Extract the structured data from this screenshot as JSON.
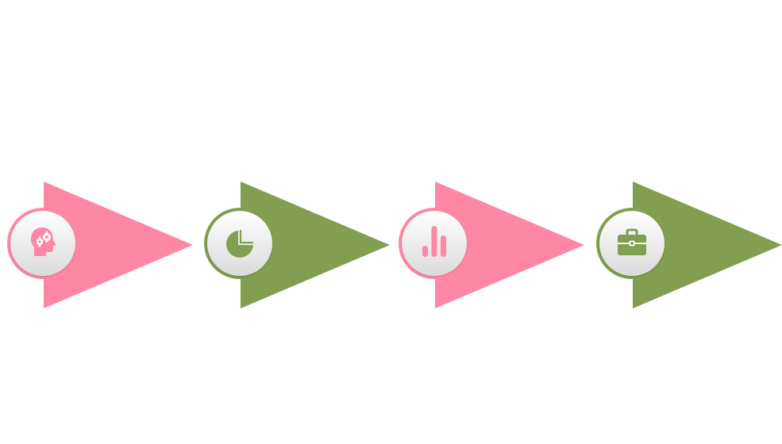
{
  "colors": {
    "pink": "#FF87A6",
    "green": "#829E50",
    "badge_top": "#FFFFFF",
    "badge_bottom": "#DADADA"
  },
  "steps": [
    {
      "color": "#FF87A6",
      "icon": "head-gears-icon"
    },
    {
      "color": "#829E50",
      "icon": "pie-chart-icon"
    },
    {
      "color": "#FF87A6",
      "icon": "bar-chart-icon"
    },
    {
      "color": "#829E50",
      "icon": "briefcase-icon"
    }
  ]
}
